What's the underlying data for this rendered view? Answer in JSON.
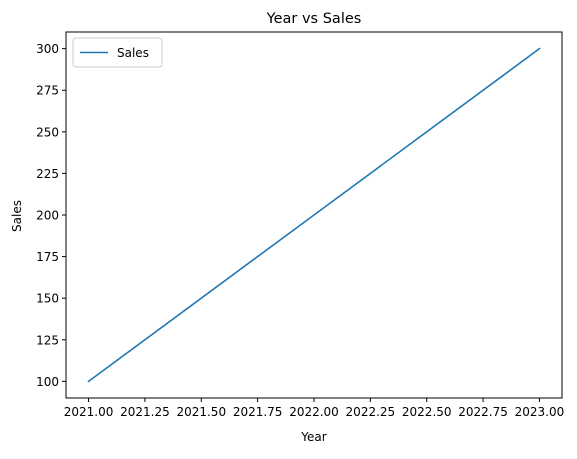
{
  "chart_data": {
    "type": "line",
    "title": "Year vs Sales",
    "xlabel": "Year",
    "ylabel": "Sales",
    "xlim": [
      2020.9,
      2023.1
    ],
    "ylim": [
      90,
      310
    ],
    "x_ticks": [
      2021.0,
      2021.25,
      2021.5,
      2021.75,
      2022.0,
      2022.25,
      2022.5,
      2022.75,
      2023.0
    ],
    "x_tick_labels": [
      "2021.00",
      "2021.25",
      "2021.50",
      "2021.75",
      "2022.00",
      "2022.25",
      "2022.50",
      "2022.75",
      "2023.00"
    ],
    "y_ticks": [
      100,
      125,
      150,
      175,
      200,
      225,
      250,
      275,
      300
    ],
    "y_tick_labels": [
      "100",
      "125",
      "150",
      "175",
      "200",
      "225",
      "250",
      "275",
      "300"
    ],
    "grid": false,
    "legend_position": "upper-left",
    "series": [
      {
        "name": "Sales",
        "color": "#1f77b4",
        "x": [
          2021,
          2022,
          2023
        ],
        "y": [
          100,
          200,
          300
        ]
      }
    ]
  }
}
